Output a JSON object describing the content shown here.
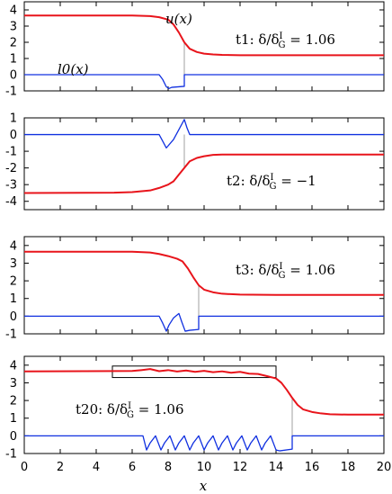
{
  "chart_data": [
    {
      "type": "line",
      "panel_label": "t1",
      "annotation": "t1:  δ/δ",
      "annotation_sup": "I",
      "annotation_sub": "G",
      "annotation_value": " = 1.06",
      "curve_label_u": "u(x)",
      "curve_label_l": "l0(x)",
      "xlim": [
        0,
        20
      ],
      "ylim": [
        -1,
        4.5
      ],
      "yticks": [
        -1,
        0,
        1,
        2,
        3,
        4
      ],
      "xticks": [
        0,
        2,
        4,
        6,
        8,
        10,
        12,
        14,
        16,
        18,
        20
      ],
      "front_x": 8.9,
      "series": [
        {
          "color": "#e8141b",
          "x": [
            0,
            6,
            7,
            7.5,
            8,
            8.3,
            8.6,
            8.9,
            9.2,
            9.6,
            10,
            10.5,
            11,
            12,
            14,
            20
          ],
          "y": [
            3.65,
            3.65,
            3.62,
            3.55,
            3.4,
            3.1,
            2.6,
            2.0,
            1.6,
            1.4,
            1.3,
            1.25,
            1.22,
            1.2,
            1.2,
            1.2
          ]
        },
        {
          "color": "#1030e0",
          "x": [
            0,
            7.5,
            7.7,
            7.9,
            8.05,
            8.2,
            8.9,
            8.9,
            9.1,
            20
          ],
          "y": [
            0,
            0,
            -0.3,
            -0.75,
            -0.85,
            -0.78,
            -0.72,
            0,
            0,
            0
          ]
        }
      ]
    },
    {
      "type": "line",
      "panel_label": "t2",
      "annotation": "t2:  δ/δ",
      "annotation_sup": "I",
      "annotation_sub": "G",
      "annotation_value": " = −1",
      "xlim": [
        0,
        20
      ],
      "ylim": [
        -4.5,
        1
      ],
      "yticks": [
        -4,
        -3,
        -2,
        -1,
        0,
        1
      ],
      "xticks": [
        0,
        2,
        4,
        6,
        8,
        10,
        12,
        14,
        16,
        18,
        20
      ],
      "front_x": 8.9,
      "series": [
        {
          "color": "#e8141b",
          "x": [
            0,
            5,
            6,
            7,
            7.5,
            8,
            8.3,
            8.6,
            8.9,
            9.2,
            9.6,
            10,
            10.5,
            11,
            12,
            14,
            20
          ],
          "y": [
            -3.5,
            -3.48,
            -3.45,
            -3.35,
            -3.2,
            -3.0,
            -2.8,
            -2.4,
            -2.0,
            -1.6,
            -1.4,
            -1.3,
            -1.22,
            -1.2,
            -1.2,
            -1.2,
            -1.2
          ]
        },
        {
          "color": "#1030e0",
          "x": [
            0,
            7.5,
            7.7,
            7.9,
            8.3,
            8.6,
            8.9,
            9.05,
            9.2,
            20
          ],
          "y": [
            0,
            0,
            -0.4,
            -0.8,
            -0.3,
            0.3,
            0.9,
            0.4,
            0,
            0
          ]
        }
      ]
    },
    {
      "type": "line",
      "panel_label": "t3",
      "annotation": "t3:  δ/δ",
      "annotation_sup": "I",
      "annotation_sub": "G",
      "annotation_value": " = 1.06",
      "xlim": [
        0,
        20
      ],
      "ylim": [
        -1,
        4.5
      ],
      "yticks": [
        -1,
        0,
        1,
        2,
        3,
        4
      ],
      "xticks": [
        0,
        2,
        4,
        6,
        8,
        10,
        12,
        14,
        16,
        18,
        20
      ],
      "front_x": 9.7,
      "series": [
        {
          "color": "#e8141b",
          "x": [
            0,
            6,
            7,
            7.5,
            8,
            8.5,
            8.8,
            9.1,
            9.4,
            9.7,
            10,
            10.5,
            11,
            12,
            14,
            20
          ],
          "y": [
            3.65,
            3.65,
            3.6,
            3.52,
            3.4,
            3.25,
            3.1,
            2.7,
            2.2,
            1.75,
            1.5,
            1.35,
            1.27,
            1.22,
            1.2,
            1.2
          ]
        },
        {
          "color": "#1030e0",
          "x": [
            0,
            7.5,
            7.7,
            7.9,
            8.05,
            8.3,
            8.6,
            8.75,
            8.95,
            9.2,
            9.7,
            9.7,
            9.9,
            20
          ],
          "y": [
            0,
            0,
            -0.4,
            -0.85,
            -0.5,
            -0.1,
            0.15,
            -0.3,
            -0.85,
            -0.8,
            -0.75,
            0,
            0,
            0
          ]
        }
      ]
    },
    {
      "type": "line",
      "panel_label": "t20",
      "annotation": "t20:  δ/δ",
      "annotation_sup": "I",
      "annotation_sub": "G",
      "annotation_value": " = 1.06",
      "xlabel": "x",
      "xlim": [
        0,
        20
      ],
      "ylim": [
        -1,
        4.5
      ],
      "yticks": [
        -1,
        0,
        1,
        2,
        3,
        4
      ],
      "xticks": [
        0,
        2,
        4,
        6,
        8,
        10,
        12,
        14,
        16,
        18,
        20
      ],
      "front_x": 14.9,
      "highlight_box": {
        "x": [
          4.9,
          14.0
        ],
        "y": [
          3.3,
          3.95
        ]
      },
      "series": [
        {
          "color": "#e8141b",
          "x": [
            0,
            6,
            6.5,
            7,
            7.5,
            8,
            8.5,
            9,
            9.5,
            10,
            10.5,
            11,
            11.5,
            12,
            12.5,
            13,
            13.5,
            14,
            14.3,
            14.6,
            14.9,
            15.2,
            15.5,
            16,
            16.5,
            17,
            18,
            20
          ],
          "y": [
            3.65,
            3.67,
            3.72,
            3.78,
            3.66,
            3.72,
            3.64,
            3.7,
            3.62,
            3.68,
            3.6,
            3.65,
            3.57,
            3.62,
            3.52,
            3.5,
            3.38,
            3.25,
            3.0,
            2.6,
            2.15,
            1.75,
            1.5,
            1.35,
            1.27,
            1.22,
            1.2,
            1.2
          ]
        },
        {
          "color": "#1030e0",
          "x": [
            0,
            6.6,
            6.8,
            7.0,
            7.3,
            7.6,
            7.8,
            8.1,
            8.4,
            8.6,
            8.9,
            9.2,
            9.4,
            9.7,
            10.0,
            10.2,
            10.5,
            10.8,
            11.0,
            11.3,
            11.6,
            11.8,
            12.1,
            12.4,
            12.6,
            12.9,
            13.2,
            13.4,
            13.7,
            14.0,
            14.2,
            14.9,
            14.9,
            15.1,
            20
          ],
          "y": [
            0,
            0,
            -0.8,
            -0.4,
            0.0,
            -0.8,
            -0.4,
            0.0,
            -0.8,
            -0.4,
            0.0,
            -0.8,
            -0.4,
            0.0,
            -0.8,
            -0.4,
            0.0,
            -0.8,
            -0.4,
            0.0,
            -0.8,
            -0.4,
            0.0,
            -0.8,
            -0.4,
            0.0,
            -0.8,
            -0.4,
            0.0,
            -0.8,
            -0.85,
            -0.75,
            0,
            0,
            0
          ]
        }
      ]
    }
  ]
}
